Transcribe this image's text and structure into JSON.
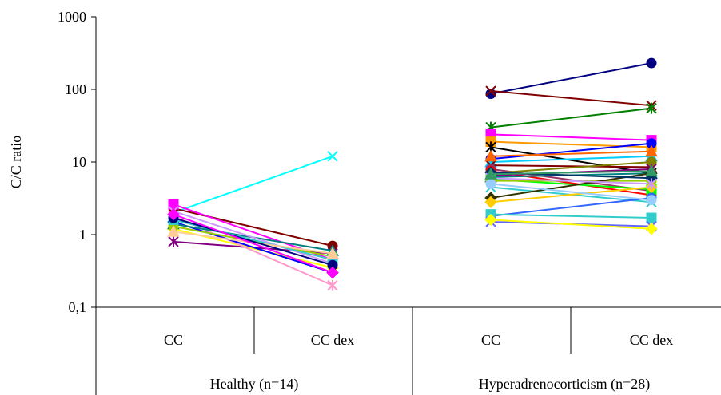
{
  "chart_data": {
    "type": "line",
    "title": "",
    "ylabel": "C/C ratio",
    "yscale": "log",
    "ylim": [
      0.1,
      1000
    ],
    "yticks": [
      {
        "value": 0.1,
        "label": "0,1"
      },
      {
        "value": 1,
        "label": "1"
      },
      {
        "value": 10,
        "label": "10"
      },
      {
        "value": 100,
        "label": "100"
      },
      {
        "value": 1000,
        "label": "1000"
      }
    ],
    "grid": false,
    "legend": "none",
    "groups": [
      {
        "label": "Healthy (n=14)",
        "categories": [
          "CC",
          "CC dex"
        ],
        "series": [
          {
            "color": "#00FFFF",
            "marker": "x",
            "values": [
              2.0,
              12.0
            ]
          },
          {
            "color": "#800000",
            "marker": "circle",
            "values": [
              2.3,
              0.7
            ]
          },
          {
            "color": "#FF00FF",
            "marker": "square",
            "values": [
              2.6,
              0.45
            ]
          },
          {
            "color": "#800080",
            "marker": "star",
            "values": [
              0.8,
              0.55
            ]
          },
          {
            "color": "#FFFF00",
            "marker": "diamond",
            "values": [
              1.2,
              0.35
            ]
          },
          {
            "color": "#FF99CC",
            "marker": "star",
            "values": [
              1.8,
              0.2
            ]
          },
          {
            "color": "#0000FF",
            "marker": "diamond",
            "values": [
              1.5,
              0.3
            ]
          },
          {
            "color": "#008080",
            "marker": "triangle",
            "values": [
              1.4,
              0.6
            ]
          },
          {
            "color": "#99CC00",
            "marker": "circle",
            "values": [
              1.3,
              0.5
            ]
          },
          {
            "color": "#CC99FF",
            "marker": "x",
            "values": [
              2.1,
              0.4
            ]
          },
          {
            "color": "#33CCCC",
            "marker": "square",
            "values": [
              1.6,
              0.45
            ]
          },
          {
            "color": "#FFCC99",
            "marker": "triangle",
            "values": [
              1.1,
              0.55
            ]
          },
          {
            "color": "#000080",
            "marker": "circle",
            "values": [
              1.7,
              0.38
            ]
          },
          {
            "color": "#FF00FF",
            "marker": "diamond",
            "values": [
              1.9,
              0.3
            ]
          }
        ]
      },
      {
        "label": "Hyperadrenocorticism (n=28)",
        "categories": [
          "CC",
          "CC dex"
        ],
        "series": [
          {
            "color": "#000080",
            "marker": "circle",
            "values": [
              87,
              230
            ]
          },
          {
            "color": "#800000",
            "marker": "x",
            "values": [
              95,
              60
            ]
          },
          {
            "color": "#008000",
            "marker": "star",
            "values": [
              30,
              55
            ]
          },
          {
            "color": "#FF00FF",
            "marker": "square",
            "values": [
              24,
              20
            ]
          },
          {
            "color": "#FF9900",
            "marker": "square",
            "values": [
              19,
              16
            ]
          },
          {
            "color": "#000000",
            "marker": "star",
            "values": [
              16,
              7
            ]
          },
          {
            "color": "#0000FF",
            "marker": "circle",
            "values": [
              11,
              18
            ]
          },
          {
            "color": "#00CCFF",
            "marker": "triangle",
            "values": [
              10,
              12
            ]
          },
          {
            "color": "#800000",
            "marker": "x",
            "values": [
              9,
              8.5
            ]
          },
          {
            "color": "#993366",
            "marker": "circle",
            "values": [
              8,
              4
            ]
          },
          {
            "color": "#FF0000",
            "marker": "circle",
            "values": [
              7.5,
              3.5
            ]
          },
          {
            "color": "#808000",
            "marker": "circle",
            "values": [
              7,
              10
            ]
          },
          {
            "color": "#800080",
            "marker": "star",
            "values": [
              6.5,
              8
            ]
          },
          {
            "color": "#008080",
            "marker": "triangle",
            "values": [
              6.2,
              7
            ]
          },
          {
            "color": "#00FF00",
            "marker": "square",
            "values": [
              5.8,
              4.2
            ]
          },
          {
            "color": "#99CC00",
            "marker": "circle",
            "values": [
              5.5,
              5.5
            ]
          },
          {
            "color": "#33CCCC",
            "marker": "x",
            "values": [
              4.5,
              2.8
            ]
          },
          {
            "color": "#333300",
            "marker": "diamond",
            "values": [
              3.2,
              7
            ]
          },
          {
            "color": "#FFCC00",
            "marker": "diamond",
            "values": [
              2.8,
              4.5
            ]
          },
          {
            "color": "#3366FF",
            "marker": "circle",
            "values": [
              1.8,
              3.2
            ]
          },
          {
            "color": "#33CCCC",
            "marker": "square",
            "values": [
              1.9,
              1.7
            ]
          },
          {
            "color": "#6666FF",
            "marker": "x",
            "values": [
              1.5,
              1.3
            ]
          },
          {
            "color": "#FFFF00",
            "marker": "diamond",
            "values": [
              1.6,
              1.2
            ]
          },
          {
            "color": "#FF6600",
            "marker": "triangle",
            "values": [
              12,
              14
            ]
          },
          {
            "color": "#003366",
            "marker": "diamond",
            "values": [
              7.2,
              6
            ]
          },
          {
            "color": "#CC99FF",
            "marker": "star",
            "values": [
              6,
              5
            ]
          },
          {
            "color": "#99CCFF",
            "marker": "circle",
            "values": [
              5,
              3
            ]
          },
          {
            "color": "#339966",
            "marker": "triangle",
            "values": [
              6.8,
              7.5
            ]
          }
        ]
      }
    ]
  }
}
